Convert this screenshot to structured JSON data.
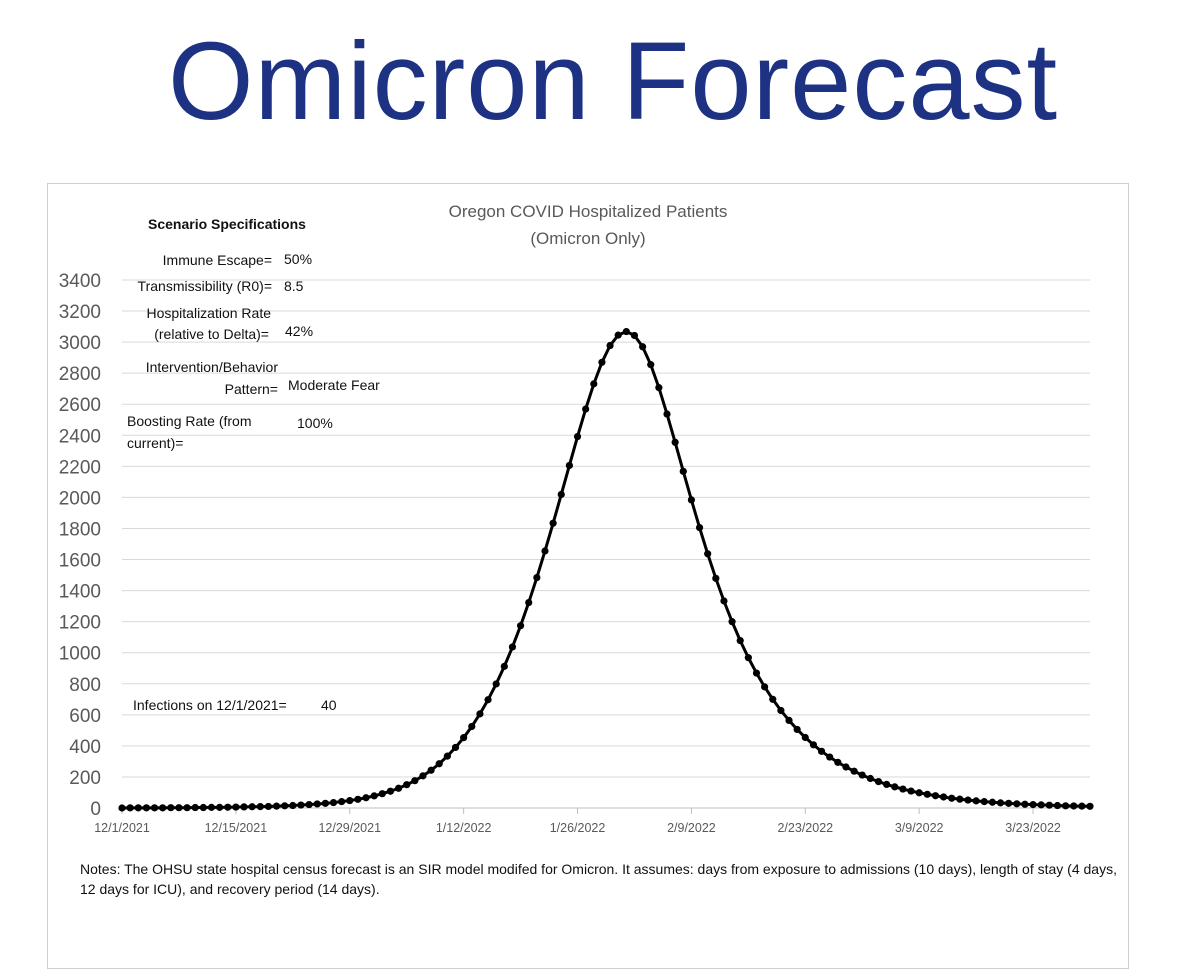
{
  "headline": "Omicron Forecast",
  "chart_data": {
    "type": "line",
    "title": [
      "Oregon COVID Hospitalized Patients",
      "(Omicron Only)"
    ],
    "xlabel": "",
    "ylabel": "",
    "x_start": "12/1/2021",
    "x_tick_labels": [
      "12/1/2021",
      "12/15/2021",
      "12/29/2021",
      "1/12/2022",
      "1/26/2022",
      "2/9/2022",
      "2/23/2022",
      "3/9/2022",
      "3/23/2022"
    ],
    "y_tick_labels": [
      "0",
      "200",
      "400",
      "600",
      "800",
      "1000",
      "1200",
      "1400",
      "1600",
      "1800",
      "2000",
      "2200",
      "2400",
      "2600",
      "2800",
      "3000",
      "3200",
      "3400"
    ],
    "ylim": [
      0,
      3400
    ],
    "grid": "horizontal",
    "marker": "circle",
    "line_color": "#000000",
    "series": [
      {
        "x": [
          "12/1/2021",
          "12/2/2021",
          "12/3/2021",
          "12/4/2021",
          "12/5/2021",
          "12/6/2021",
          "12/7/2021",
          "12/8/2021",
          "12/9/2021",
          "12/10/2021",
          "12/11/2021",
          "12/12/2021",
          "12/13/2021",
          "12/14/2021",
          "12/15/2021",
          "12/16/2021",
          "12/17/2021",
          "12/18/2021",
          "12/19/2021",
          "12/20/2021",
          "12/21/2021",
          "12/22/2021",
          "12/23/2021",
          "12/24/2021",
          "12/25/2021",
          "12/26/2021",
          "12/27/2021",
          "12/28/2021",
          "12/29/2021",
          "12/30/2021",
          "12/31/2021",
          "1/1/2022",
          "1/2/2022",
          "1/3/2022",
          "1/4/2022",
          "1/5/2022",
          "1/6/2022",
          "1/7/2022",
          "1/8/2022",
          "1/9/2022",
          "1/10/2022",
          "1/11/2022",
          "1/12/2022",
          "1/13/2022",
          "1/14/2022",
          "1/15/2022",
          "1/16/2022",
          "1/17/2022",
          "1/18/2022",
          "1/19/2022",
          "1/20/2022",
          "1/21/2022",
          "1/22/2022",
          "1/23/2022",
          "1/24/2022",
          "1/25/2022",
          "1/26/2022",
          "1/27/2022",
          "1/28/2022",
          "1/29/2022",
          "1/30/2022",
          "1/31/2022",
          "2/1/2022",
          "2/2/2022",
          "2/3/2022",
          "2/4/2022",
          "2/5/2022",
          "2/6/2022",
          "2/7/2022",
          "2/8/2022",
          "2/9/2022",
          "2/10/2022",
          "2/11/2022",
          "2/12/2022",
          "2/13/2022",
          "2/14/2022",
          "2/15/2022",
          "2/16/2022",
          "2/17/2022",
          "2/18/2022",
          "2/19/2022",
          "2/20/2022",
          "2/21/2022",
          "2/22/2022",
          "2/23/2022",
          "2/24/2022",
          "2/25/2022",
          "2/26/2022",
          "2/27/2022",
          "2/28/2022",
          "3/1/2022",
          "3/2/2022",
          "3/3/2022",
          "3/4/2022",
          "3/5/2022",
          "3/6/2022",
          "3/7/2022",
          "3/8/2022",
          "3/9/2022",
          "3/10/2022",
          "3/11/2022",
          "3/12/2022",
          "3/13/2022",
          "3/14/2022",
          "3/15/2022",
          "3/16/2022",
          "3/17/2022",
          "3/18/2022",
          "3/19/2022",
          "3/20/2022",
          "3/21/2022",
          "3/22/2022",
          "3/23/2022",
          "3/24/2022",
          "3/25/2022",
          "3/26/2022",
          "3/27/2022",
          "3/28/2022",
          "3/29/2022",
          "3/30/2022"
        ],
        "values": [
          0,
          1,
          1,
          1,
          1,
          1,
          2,
          2,
          2,
          3,
          3,
          4,
          4,
          5,
          6,
          7,
          8,
          9,
          10,
          12,
          14,
          16,
          19,
          22,
          26,
          30,
          35,
          41,
          48,
          56,
          66,
          78,
          92,
          108,
          127,
          150,
          176,
          207,
          243,
          285,
          334,
          390,
          453,
          525,
          606,
          697,
          799,
          912,
          1037,
          1174,
          1323,
          1484,
          1655,
          1834,
          2019,
          2206,
          2392,
          2569,
          2731,
          2870,
          2978,
          3045,
          3068,
          3043,
          2970,
          2855,
          2707,
          2537,
          2355,
          2168,
          1984,
          1806,
          1637,
          1479,
          1333,
          1200,
          1078,
          968,
          869,
          780,
          700,
          628,
          564,
          506,
          454,
          407,
          365,
          328,
          294,
          264,
          237,
          212,
          190,
          170,
          152,
          136,
          122,
          109,
          98,
          88,
          79,
          71,
          63,
          57,
          51,
          46,
          41,
          37,
          33,
          30,
          27,
          24,
          22,
          20,
          18,
          16,
          14,
          13,
          12,
          11
        ]
      }
    ]
  },
  "specs": {
    "heading": "Scenario Specifications",
    "items": [
      {
        "label": "Immune Escape=",
        "value": "50%"
      },
      {
        "label": "Transmissibility (R0)=",
        "value": "8.5"
      },
      {
        "label_lines": [
          "Hospitalization Rate",
          "(relative to Delta)="
        ],
        "value": "42%"
      },
      {
        "label_lines": [
          "Intervention/Behavior",
          "Pattern="
        ],
        "value": "Moderate Fear"
      },
      {
        "label_lines": [
          "Boosting Rate (from",
          "current)="
        ],
        "value": "100%"
      }
    ],
    "infections": {
      "label": "Infections on 12/1/2021=",
      "value": "40"
    }
  },
  "notes": "Notes: The OHSU state hospital census forecast is an SIR model modifed for Omicron. It assumes: days from exposure to admissions (10 days), length of stay (4 days, 12 days for ICU), and recovery period (14 days)."
}
